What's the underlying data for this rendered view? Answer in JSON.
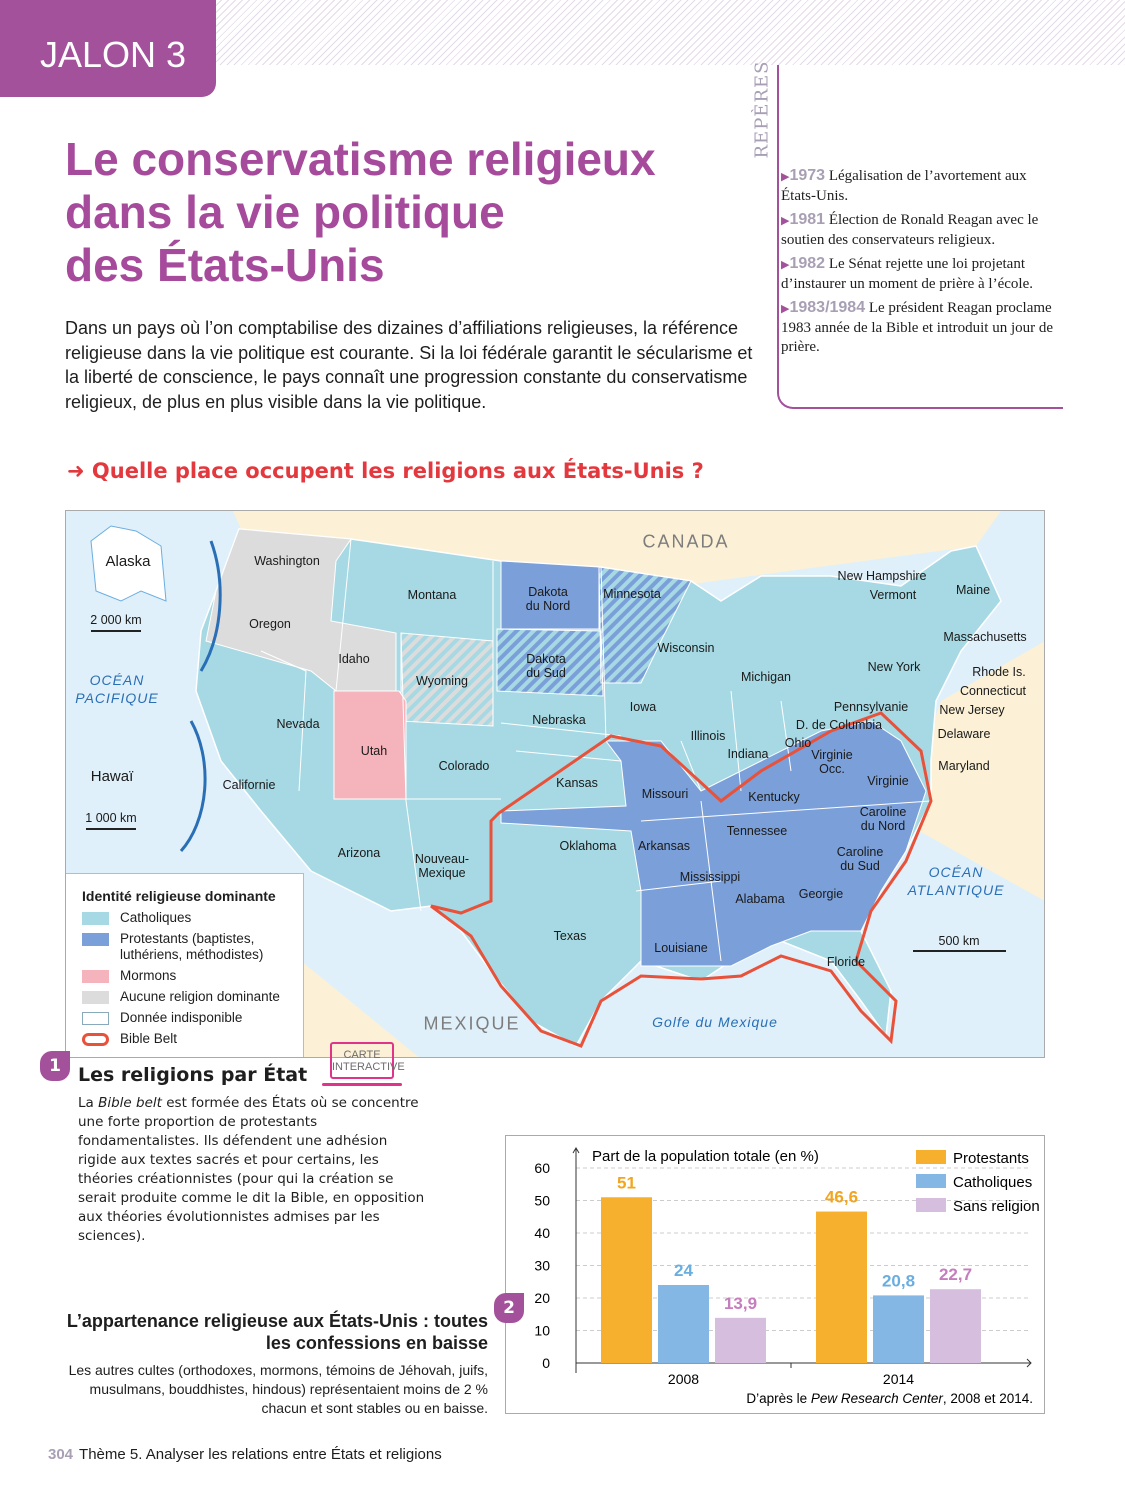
{
  "header": {
    "jalon": "JALON 3"
  },
  "title": [
    "Le conservatisme religieux",
    "dans la vie politique",
    "des États-Unis"
  ],
  "intro": "Dans un pays où l’on comptabilise des dizaines d’affiliations religieuses, la référence religieuse dans la vie politique est courante. Si la loi fédérale garantit le sécularisme et la liberté de conscience, le pays connaît une progression constante du conservatisme religieux, de plus en plus visible dans la vie politique.",
  "question": "➜ Quelle place occupent les religions aux États-Unis ?",
  "reperes": {
    "label": "REPÈRES",
    "items": [
      {
        "year": "1973",
        "text": "Légalisation de l’avortement aux États-Unis."
      },
      {
        "year": "1981",
        "text": "Élection de Ronald Reagan avec le soutien des conservateurs religieux."
      },
      {
        "year": "1982",
        "text": "Le Sénat rejette une loi projetant d’instaurer un moment de prière à l’école."
      },
      {
        "year": "1983/1984",
        "text": "Le président Reagan proclame 1983 année de la Bible et introduit un jour de prière."
      }
    ]
  },
  "map": {
    "regions": {
      "canada": "CANADA",
      "mexique": "MEXIQUE",
      "pacifique": "OCÉAN PACIFIQUE",
      "atlantique": "OCÉAN ATLANTIQUE",
      "golfe": "Golfe du Mexique",
      "alaska": "Alaska",
      "hawai": "Hawaï",
      "scale_alaska": "2 000 km",
      "scale_hawai": "1 000 km",
      "scale_main": "500 km"
    },
    "states": [
      "Washington",
      "Oregon",
      "Idaho",
      "Montana",
      "Wyoming",
      "Utah",
      "Nevada",
      "Californie",
      "Arizona",
      "Colorado",
      "Nouveau-Mexique",
      "Dakota du Nord",
      "Dakota du Sud",
      "Nebraska",
      "Kansas",
      "Oklahoma",
      "Texas",
      "Minnesota",
      "Iowa",
      "Missouri",
      "Arkansas",
      "Louisiane",
      "Mississippi",
      "Alabama",
      "Georgie",
      "Floride",
      "Tennessee",
      "Kentucky",
      "Illinois",
      "Indiana",
      "Ohio",
      "Michigan",
      "Wisconsin",
      "Pennsylvanie",
      "New York",
      "Virginie Occ.",
      "Virginie",
      "Caroline du Nord",
      "Caroline du Sud",
      "D. de Columbia",
      "Maine",
      "New Hampshire",
      "Vermont",
      "Massachusetts",
      "Rhode Is.",
      "Connecticut",
      "New Jersey",
      "Delaware",
      "Maryland"
    ],
    "legend": {
      "title": "Identité religieuse dominante",
      "items": [
        {
          "label": "Catholiques",
          "color": "#a6d9e3"
        },
        {
          "label": "Protestants (baptistes, luthériens, méthodistes)",
          "color": "#7b9fd8"
        },
        {
          "label": "Mormons",
          "color": "#f5b3bb"
        },
        {
          "label": "Aucune religion dominante",
          "color": "#dcdcdc"
        },
        {
          "label": "Donnée indisponible",
          "color": "#ffffff"
        },
        {
          "label": "Bible Belt",
          "color": "#e8513a"
        }
      ]
    }
  },
  "doc1": {
    "number": "1",
    "title": "Les religions par État",
    "carte": "CARTE INTERACTIVE",
    "text_italic": "Bible belt",
    "text_pre": "La ",
    "text": " est formée des États où se concentre une forte proportion de protestants fondamentalistes. Ils défendent une adhésion rigide aux textes sacrés et pour certains, les théories créationnistes (pour qui la création se serait produite comme le dit la Bible, en opposition aux théories évolutionnistes admises par les sciences)."
  },
  "doc2": {
    "number": "2",
    "title": "L’appartenance religieuse aux États-Unis : toutes les confessions en baisse",
    "text": "Les autres cultes (orthodoxes, mormons, témoins de Jéhovah, juifs, musulmans, bouddhistes, hindous) représentaient moins de 2 % chacun et sont stables ou en baisse."
  },
  "chart_data": {
    "type": "bar",
    "title": "Part de la population totale (en %)",
    "categories": [
      "2008",
      "2014"
    ],
    "ylim": [
      0,
      60
    ],
    "yticks": [
      0,
      10,
      20,
      30,
      40,
      50,
      60
    ],
    "grid": true,
    "legend": "top-right",
    "series": [
      {
        "name": "Protestants",
        "color": "#f7b02e",
        "values": [
          51,
          46.6
        ],
        "labels": [
          "51",
          "46,6"
        ],
        "labelColor": "#f2a51f"
      },
      {
        "name": "Catholiques",
        "color": "#84b7e3",
        "values": [
          24,
          20.8
        ],
        "labels": [
          "24",
          "20,8"
        ],
        "labelColor": "#6aaee0"
      },
      {
        "name": "Sans religion",
        "color": "#d5bede",
        "values": [
          13.9,
          22.7
        ],
        "labels": [
          "13,9",
          "22,7"
        ],
        "labelColor": "#c67dbd"
      }
    ],
    "source_pre": "D’après le ",
    "source_italic": "Pew Research Center",
    "source_post": ", 2008 et 2014."
  },
  "footer": {
    "page": "304",
    "text": "Thème 5. Analyser les relations entre États et religions"
  }
}
